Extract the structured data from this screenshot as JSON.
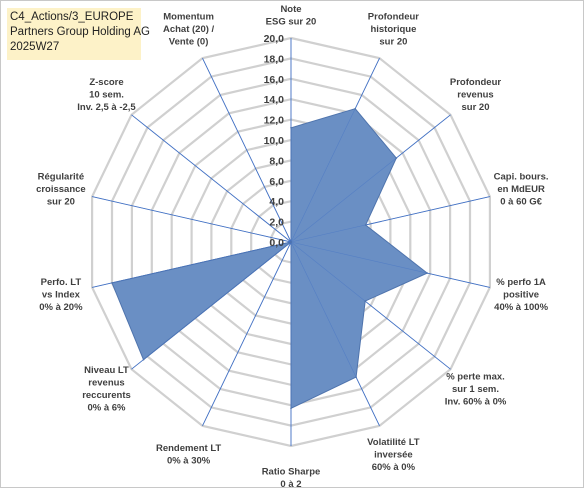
{
  "title": {
    "line1": "C4_Actions/3_EUROPE",
    "line2": "Partners Group Holding AG",
    "line3": "2025W27"
  },
  "colors": {
    "fill": "#6a8fc4",
    "stroke": "#4f74ad",
    "ring": "#d0d0d0",
    "spoke": "#4472c4",
    "title_bg": "#fdf2c8"
  },
  "chart_data": {
    "type": "radar",
    "rmin": 0,
    "rmax": 20,
    "ticks": [
      "0,0",
      "2,0",
      "4,0",
      "6,0",
      "8,0",
      "10,0",
      "12,0",
      "14,0",
      "16,0",
      "18,0",
      "20,0"
    ],
    "categories": [
      "Note ESG sur 20",
      "Profondeur historique sur 20",
      "Profondeur revenus sur 20",
      "Capi. bours. en MdEUR 0 à 60 G€",
      "% perfo 1A positive 40% à 100%",
      "% perte max. sur 1 sem. Inv. 60% à 0%",
      "Volatilité LT inversée 60% à 0%",
      "Ratio Sharpe 0 à 2",
      "Rendement LT 0% à 30%",
      "Niveau LT revenus reccurents 0% à 6%",
      "Perfo. LT vs Index 0% à 20%",
      "Régularité croissance sur 20",
      "Z-score 10 sem. Inv. 2,5 à -2,5",
      "Momentum Achat (20) / Vente (0)"
    ],
    "label_lines": [
      [
        "Note",
        "ESG sur 20"
      ],
      [
        "Profondeur",
        "historique",
        "sur 20"
      ],
      [
        "Profondeur",
        "revenus",
        "sur 20"
      ],
      [
        "Capi. bours.",
        "en MdEUR",
        "0 à 60 G€"
      ],
      [
        "% perfo 1A",
        "positive",
        "40% à 100%"
      ],
      [
        "% perte max.",
        "sur 1 sem.",
        "Inv. 60% à 0%"
      ],
      [
        "Volatilité LT",
        "inversée",
        "60% à 0%"
      ],
      [
        "Ratio Sharpe",
        "0 à 2"
      ],
      [
        "Rendement LT",
        "0% à 30%"
      ],
      [
        "Niveau LT",
        "revenus",
        "reccurents",
        "0% à 6%"
      ],
      [
        "Perfo. LT",
        "vs Index",
        "0% à 20%"
      ],
      [
        "Régularité",
        "croissance",
        "sur 20"
      ],
      [
        "Z-score",
        "10 sem.",
        "Inv. 2,5 à -2,5"
      ],
      [
        "Momentum",
        "Achat (20) /",
        "Vente (0)"
      ]
    ],
    "values": [
      11.2,
      14.5,
      13.2,
      7.5,
      13.7,
      9.3,
      14.7,
      16.3,
      0,
      18.5,
      18.0,
      0,
      0,
      0
    ]
  }
}
